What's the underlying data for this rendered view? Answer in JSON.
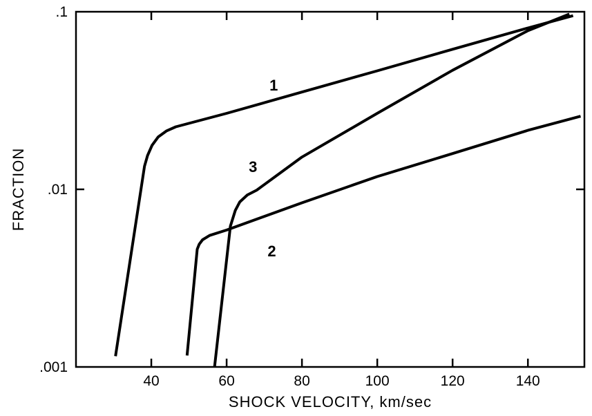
{
  "chart_data": {
    "type": "line",
    "title": "",
    "xlabel": "SHOCK VELOCITY, km/sec",
    "ylabel": "FRACTION",
    "xlim": [
      20,
      155
    ],
    "ylim": [
      0.001,
      0.1
    ],
    "yscale": "log",
    "grid": false,
    "x_ticks": [
      {
        "value": 40,
        "label": "40"
      },
      {
        "value": 60,
        "label": "60"
      },
      {
        "value": 80,
        "label": "80"
      },
      {
        "value": 100,
        "label": "100"
      },
      {
        "value": 120,
        "label": "120"
      },
      {
        "value": 140,
        "label": "140"
      }
    ],
    "y_ticks": [
      {
        "value": 0.001,
        "label": ".001"
      },
      {
        "value": 0.01,
        "label": ".01"
      },
      {
        "value": 0.1,
        "label": ".1"
      }
    ],
    "series": [
      {
        "name": "1",
        "color": "#000000",
        "points": [
          [
            30.5,
            0.00115
          ],
          [
            38.2,
            0.0135
          ],
          [
            39.0,
            0.0155
          ],
          [
            40.2,
            0.0177
          ],
          [
            41.8,
            0.0197
          ],
          [
            44.0,
            0.0213
          ],
          [
            46.5,
            0.0225
          ],
          [
            60.0,
            0.0268
          ],
          [
            80.0,
            0.0353
          ],
          [
            100.0,
            0.0465
          ],
          [
            120.0,
            0.0615
          ],
          [
            140.0,
            0.081
          ],
          [
            152.0,
            0.095
          ]
        ]
      },
      {
        "name": "2",
        "color": "#000000",
        "points": [
          [
            49.5,
            0.00116
          ],
          [
            52.2,
            0.0046
          ],
          [
            52.7,
            0.0049
          ],
          [
            53.6,
            0.0052
          ],
          [
            55.5,
            0.0055
          ],
          [
            60.0,
            0.0059
          ],
          [
            80.0,
            0.0084
          ],
          [
            100.0,
            0.0118
          ],
          [
            120.0,
            0.0159
          ],
          [
            140.0,
            0.0215
          ],
          [
            154.0,
            0.0258
          ]
        ]
      },
      {
        "name": "3",
        "color": "#000000",
        "points": [
          [
            56.8,
            0.001
          ],
          [
            61.0,
            0.0062
          ],
          [
            62.3,
            0.0076
          ],
          [
            63.5,
            0.0085
          ],
          [
            65.5,
            0.0093
          ],
          [
            68.0,
            0.0099
          ],
          [
            80.0,
            0.0152
          ],
          [
            100.0,
            0.0268
          ],
          [
            120.0,
            0.0468
          ],
          [
            140.0,
            0.0782
          ],
          [
            151.0,
            0.097
          ]
        ]
      }
    ],
    "series_labels": [
      {
        "series": "1",
        "text": "1",
        "x": 72.5,
        "y": 0.036
      },
      {
        "series": "3",
        "text": "3",
        "x": 67.0,
        "y": 0.0125
      },
      {
        "series": "2",
        "text": "2",
        "x": 72.0,
        "y": 0.0042
      }
    ]
  }
}
